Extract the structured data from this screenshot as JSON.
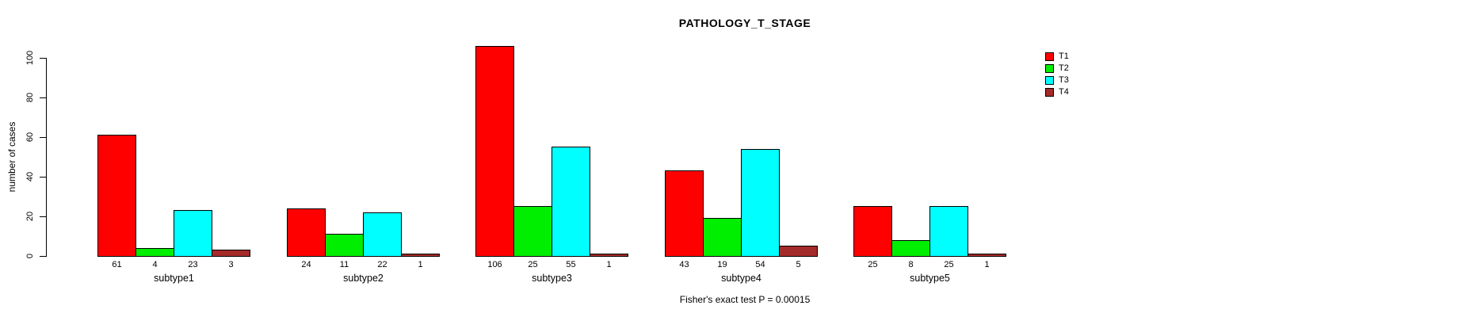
{
  "chart_data": {
    "type": "bar",
    "title": "PATHOLOGY_T_STAGE",
    "xlabel": "",
    "ylabel": "number of cases",
    "ylim": [
      0,
      100
    ],
    "yticks": [
      0,
      20,
      40,
      60,
      80,
      100
    ],
    "grid": false,
    "legend_position": "right",
    "categories": [
      "subtype1",
      "subtype2",
      "subtype3",
      "subtype4",
      "subtype5"
    ],
    "series": [
      {
        "name": "T1",
        "color": "#ff0000",
        "values": [
          61,
          24,
          106,
          43,
          25
        ]
      },
      {
        "name": "T2",
        "color": "#00ee00",
        "values": [
          4,
          11,
          25,
          19,
          8
        ]
      },
      {
        "name": "T3",
        "color": "#00ffff",
        "values": [
          23,
          22,
          55,
          54,
          25
        ]
      },
      {
        "name": "T4",
        "color": "#a52a2a",
        "values": [
          3,
          1,
          1,
          5,
          1
        ]
      }
    ],
    "bar_value_labels": [
      [
        61,
        4,
        23,
        3
      ],
      [
        24,
        11,
        22,
        1
      ],
      [
        106,
        25,
        55,
        1
      ],
      [
        43,
        19,
        54,
        5
      ],
      [
        25,
        8,
        25,
        1
      ]
    ],
    "annotation": "Fisher's exact test P = 0.00015"
  }
}
